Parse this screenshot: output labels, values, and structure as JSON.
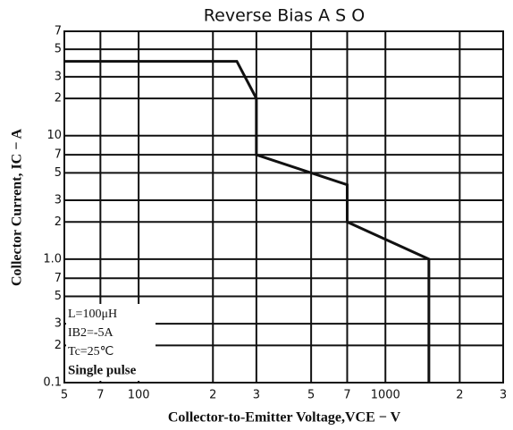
{
  "chart_data": {
    "type": "line",
    "title": "Reverse Bias A S O",
    "xlabel": "Collector-to-Emitter Voltage,VCE − V",
    "ylabel": "Collector Current, IC − A",
    "log_x": true,
    "log_y": true,
    "grid": true,
    "xlim": [
      50,
      3000
    ],
    "ylim": [
      0.1,
      70
    ],
    "xticks": [
      {
        "value": 50,
        "label": "5"
      },
      {
        "value": 70,
        "label": "7"
      },
      100,
      {
        "value": 200,
        "label": "2"
      },
      {
        "value": 300,
        "label": "3"
      },
      {
        "value": 500,
        "label": "5"
      },
      {
        "value": 700,
        "label": "7"
      },
      1000,
      {
        "value": 2000,
        "label": "2"
      },
      {
        "value": 3000,
        "label": "3"
      }
    ],
    "yticks": [
      0.1,
      {
        "value": 0.2,
        "label": "2"
      },
      {
        "value": 0.3,
        "label": "3"
      },
      {
        "value": 0.5,
        "label": "5"
      },
      {
        "value": 0.7,
        "label": "7"
      },
      {
        "value": 1,
        "label": "1.0"
      },
      {
        "value": 2,
        "label": "2"
      },
      {
        "value": 3,
        "label": "3"
      },
      {
        "value": 5,
        "label": "5"
      },
      {
        "value": 7,
        "label": "7"
      },
      10,
      {
        "value": 20,
        "label": "2"
      },
      {
        "value": 30,
        "label": "3"
      },
      {
        "value": 50,
        "label": "5"
      },
      {
        "value": 70,
        "label": "7"
      }
    ],
    "series": [
      {
        "color": "#111111",
        "x": [
          50,
          250,
          300,
          300,
          700,
          700,
          1500,
          1500
        ],
        "values": [
          40,
          40,
          20,
          7,
          4,
          2,
          1,
          0.1
        ]
      }
    ],
    "annotations": [
      "L=100μH",
      "IB2=-5A",
      "Tc=25℃",
      "Single pulse"
    ]
  }
}
